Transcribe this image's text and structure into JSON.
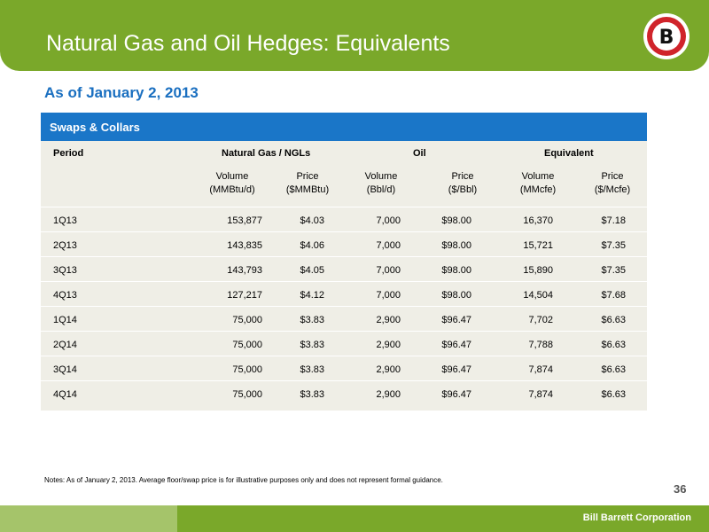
{
  "header": {
    "title": "Natural Gas and Oil Hedges: Equivalents",
    "logo_letter": "B"
  },
  "subtitle": "As of January 2, 2013",
  "table": {
    "title": "Swaps & Collars",
    "group_headers": [
      "Period",
      "Natural Gas / NGLs",
      "Oil",
      "Equivalent"
    ],
    "sub_headers": [
      [
        "Volume",
        "(MMBtu/d)"
      ],
      [
        "Price",
        "($MMBtu)"
      ],
      [
        "Volume",
        "(Bbl/d)"
      ],
      [
        "Price",
        "($/Bbl)"
      ],
      [
        "Volume",
        "(MMcfe)"
      ],
      [
        "Price",
        "($/Mcfe)"
      ]
    ],
    "rows": [
      [
        "1Q13",
        "153,877",
        "$4.03",
        "7,000",
        "$98.00",
        "16,370",
        "$7.18"
      ],
      [
        "2Q13",
        "143,835",
        "$4.06",
        "7,000",
        "$98.00",
        "15,721",
        "$7.35"
      ],
      [
        "3Q13",
        "143,793",
        "$4.05",
        "7,000",
        "$98.00",
        "15,890",
        "$7.35"
      ],
      [
        "4Q13",
        "127,217",
        "$4.12",
        "7,000",
        "$98.00",
        "14,504",
        "$7.68"
      ],
      [
        "1Q14",
        "75,000",
        "$3.83",
        "2,900",
        "$96.47",
        "7,702",
        "$6.63"
      ],
      [
        "2Q14",
        "75,000",
        "$3.83",
        "2,900",
        "$96.47",
        "7,788",
        "$6.63"
      ],
      [
        "3Q14",
        "75,000",
        "$3.83",
        "2,900",
        "$96.47",
        "7,874",
        "$6.63"
      ],
      [
        "4Q14",
        "75,000",
        "$3.83",
        "2,900",
        "$96.47",
        "7,874",
        "$6.63"
      ]
    ]
  },
  "notes": "Notes: As of January 2, 2013. Average floor/swap price is for illustrative purposes only and does not represent formal guidance.",
  "page_number": "36",
  "footer": {
    "company": "Bill Barrett Corporation"
  },
  "colors": {
    "header_green": "#7aa82a",
    "footer_light_green": "#a5c46a",
    "table_title_blue": "#1a76c8",
    "subtitle_blue": "#1a6fc0",
    "table_bg": "#efeee6",
    "logo_red": "#d0242b"
  }
}
